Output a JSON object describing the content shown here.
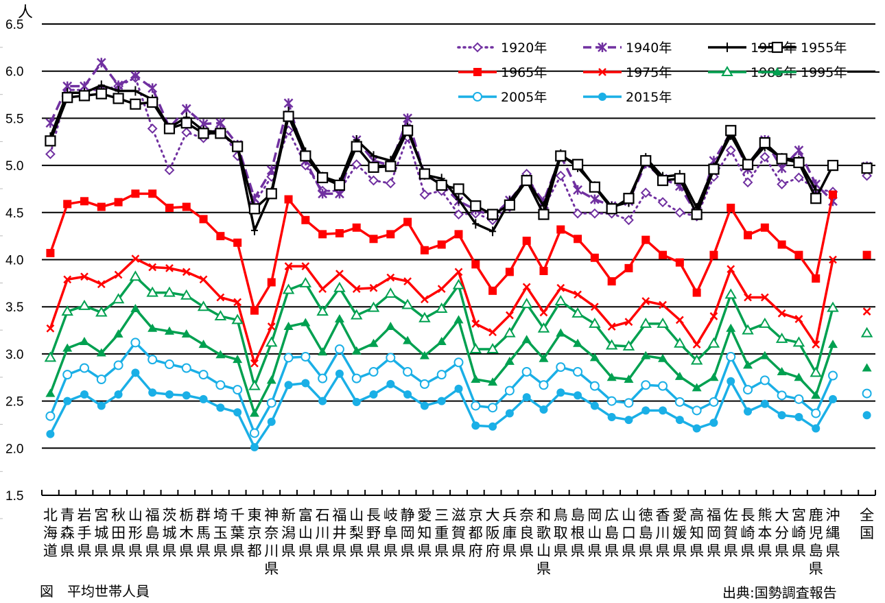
{
  "chart_data": {
    "type": "line",
    "title": "",
    "ylabel": "人",
    "xlabel": "",
    "ylim": [
      1.5,
      6.5
    ],
    "yticks": [
      "1.5",
      "2.0",
      "2.5",
      "3.0",
      "3.5",
      "4.0",
      "4.5",
      "5.0",
      "5.5",
      "6.0",
      "6.5"
    ],
    "ytick_values": [
      1.5,
      2.0,
      2.5,
      3.0,
      3.5,
      4.0,
      4.5,
      5.0,
      5.5,
      6.0,
      6.5
    ],
    "grid": true,
    "legend_position": "top-right",
    "categories": [
      "北海道",
      "青森県",
      "岩手県",
      "宮城県",
      "秋田県",
      "山形県",
      "福島県",
      "茨城県",
      "栃木県",
      "群馬県",
      "埼玉県",
      "千葉県",
      "東京都",
      "神奈川県",
      "新潟県",
      "富山県",
      "石川県",
      "福井県",
      "山梨県",
      "長野県",
      "岐阜県",
      "静岡県",
      "愛知県",
      "三重県",
      "滋賀県",
      "京都府",
      "大阪府",
      "兵庫県",
      "奈良県",
      "和歌山県",
      "鳥取県",
      "島根県",
      "岡山県",
      "広島県",
      "山口県",
      "徳島県",
      "香川県",
      "愛媛県",
      "高知県",
      "福岡県",
      "佐賀県",
      "長崎県",
      "熊本県",
      "大分県",
      "宮崎県",
      "鹿児島県",
      "沖縄県",
      "",
      "全国"
    ],
    "series": [
      {
        "name": "1920年",
        "color": "#7030A0",
        "style": "dotted",
        "marker": "diamond-open",
        "values": [
          5.12,
          5.8,
          5.8,
          5.8,
          5.84,
          5.93,
          5.39,
          4.95,
          5.35,
          5.29,
          5.41,
          5.1,
          4.6,
          4.88,
          5.37,
          5.0,
          4.73,
          4.73,
          5.01,
          4.84,
          4.81,
          5.3,
          4.69,
          4.73,
          4.48,
          4.49,
          4.42,
          4.56,
          4.91,
          4.55,
          4.89,
          4.49,
          4.49,
          4.49,
          4.42,
          4.71,
          4.61,
          4.5,
          4.46,
          4.88,
          5.16,
          4.82,
          5.09,
          4.8,
          4.87,
          4.75,
          4.72,
          null,
          4.89
        ]
      },
      {
        "name": "1940年",
        "color": "#7030A0",
        "style": "dashed",
        "marker": "asterisk",
        "values": [
          5.45,
          5.84,
          5.84,
          6.09,
          5.85,
          5.95,
          5.82,
          5.4,
          5.6,
          5.44,
          5.45,
          5.22,
          4.65,
          4.95,
          5.66,
          5.05,
          4.7,
          4.7,
          5.27,
          5.05,
          5.0,
          5.5,
          4.9,
          4.8,
          4.62,
          4.53,
          4.46,
          4.63,
          4.85,
          4.62,
          5.1,
          4.74,
          4.64,
          4.57,
          4.62,
          5.02,
          4.86,
          4.78,
          4.48,
          5.05,
          5.35,
          4.96,
          5.27,
          4.97,
          5.16,
          4.8,
          4.62,
          null,
          4.99
        ]
      },
      {
        "name": "1950年",
        "color": "#000000",
        "style": "solid",
        "marker": "plus",
        "values": [
          5.3,
          5.77,
          5.77,
          5.85,
          5.79,
          5.79,
          5.7,
          5.4,
          5.51,
          5.37,
          5.35,
          5.2,
          4.31,
          4.72,
          5.57,
          5.14,
          4.88,
          4.82,
          5.27,
          5.1,
          5.05,
          5.4,
          4.9,
          4.86,
          4.64,
          4.38,
          4.3,
          4.62,
          4.85,
          4.57,
          5.12,
          4.98,
          4.78,
          4.56,
          4.61,
          5.08,
          4.88,
          4.9,
          4.55,
          4.98,
          5.32,
          5.0,
          5.2,
          5.08,
          5.05,
          4.74,
          null,
          null,
          4.97
        ]
      },
      {
        "name": "1955年",
        "color": "#000000",
        "style": "solid",
        "marker": "square-open",
        "values": [
          5.26,
          5.72,
          5.74,
          5.76,
          5.71,
          5.65,
          5.67,
          5.39,
          5.45,
          5.34,
          5.34,
          5.2,
          4.54,
          4.7,
          5.52,
          5.1,
          4.87,
          4.79,
          5.2,
          4.98,
          4.99,
          5.37,
          4.91,
          4.79,
          4.75,
          4.57,
          4.48,
          4.58,
          4.84,
          4.48,
          5.1,
          5.01,
          4.77,
          4.54,
          4.65,
          5.05,
          4.84,
          4.86,
          4.48,
          4.96,
          5.37,
          5.01,
          5.24,
          5.07,
          5.03,
          4.65,
          5.0,
          null,
          4.97
        ]
      },
      {
        "name": "1965年",
        "color": "#FF0000",
        "style": "solid",
        "marker": "square-filled",
        "values": [
          4.07,
          4.59,
          4.62,
          4.56,
          4.61,
          4.7,
          4.7,
          4.55,
          4.56,
          4.43,
          4.25,
          4.18,
          3.46,
          3.76,
          4.64,
          4.42,
          4.27,
          4.28,
          4.34,
          4.22,
          4.27,
          4.4,
          4.1,
          4.16,
          4.27,
          3.95,
          3.67,
          3.87,
          4.2,
          3.88,
          4.32,
          4.22,
          4.02,
          3.77,
          3.91,
          4.21,
          4.05,
          3.97,
          3.65,
          4.05,
          4.55,
          4.26,
          4.34,
          4.16,
          4.05,
          3.8,
          4.69,
          null,
          4.05
        ]
      },
      {
        "name": "1975年",
        "color": "#FF0000",
        "style": "solid",
        "marker": "x",
        "values": [
          3.27,
          3.79,
          3.82,
          3.74,
          3.84,
          4.01,
          3.92,
          3.91,
          3.87,
          3.79,
          3.6,
          3.55,
          2.9,
          3.29,
          3.93,
          3.93,
          3.69,
          3.85,
          3.69,
          3.7,
          3.81,
          3.77,
          3.58,
          3.69,
          3.87,
          3.32,
          3.23,
          3.41,
          3.71,
          3.44,
          3.7,
          3.63,
          3.5,
          3.29,
          3.34,
          3.56,
          3.52,
          3.36,
          3.1,
          3.4,
          3.9,
          3.6,
          3.6,
          3.43,
          3.37,
          3.1,
          4.0,
          null,
          3.45
        ]
      },
      {
        "name": "1985年",
        "color": "#00A050",
        "style": "solid",
        "marker": "triangle-open",
        "values": [
          2.96,
          3.45,
          3.51,
          3.44,
          3.58,
          3.82,
          3.65,
          3.65,
          3.62,
          3.5,
          3.4,
          3.36,
          2.66,
          3.12,
          3.68,
          3.75,
          3.45,
          3.7,
          3.41,
          3.49,
          3.64,
          3.52,
          3.38,
          3.48,
          3.73,
          3.05,
          3.05,
          3.22,
          3.53,
          3.27,
          3.56,
          3.43,
          3.32,
          3.09,
          3.08,
          3.32,
          3.32,
          3.11,
          2.93,
          3.11,
          3.63,
          3.25,
          3.32,
          3.16,
          3.12,
          2.8,
          3.49,
          null,
          3.22
        ]
      },
      {
        "name": "1995年",
        "color": "#00A050",
        "style": "solid",
        "marker": "triangle-filled",
        "values": [
          2.58,
          3.06,
          3.13,
          3.01,
          3.21,
          3.48,
          3.27,
          3.24,
          3.21,
          3.1,
          2.99,
          2.94,
          2.37,
          2.72,
          3.29,
          3.33,
          3.02,
          3.37,
          3.03,
          3.11,
          3.29,
          3.14,
          2.98,
          3.13,
          3.36,
          2.73,
          2.7,
          2.92,
          3.15,
          2.95,
          3.22,
          3.11,
          2.96,
          2.75,
          2.73,
          2.98,
          2.95,
          2.76,
          2.64,
          2.75,
          3.27,
          2.88,
          2.98,
          2.81,
          2.75,
          2.56,
          3.1,
          null,
          2.85
        ]
      },
      {
        "name": "2005年",
        "color": "#1AAFE6",
        "style": "solid",
        "marker": "circle-open",
        "values": [
          2.34,
          2.78,
          2.85,
          2.73,
          2.88,
          3.12,
          2.94,
          2.89,
          2.85,
          2.78,
          2.67,
          2.62,
          2.16,
          2.48,
          2.96,
          2.97,
          2.74,
          3.05,
          2.74,
          2.81,
          2.96,
          2.81,
          2.68,
          2.78,
          2.91,
          2.45,
          2.43,
          2.61,
          2.81,
          2.67,
          2.86,
          2.81,
          2.66,
          2.5,
          2.48,
          2.67,
          2.66,
          2.49,
          2.4,
          2.49,
          2.97,
          2.62,
          2.72,
          2.56,
          2.52,
          2.37,
          2.77,
          null,
          2.58
        ]
      },
      {
        "name": "2015年",
        "color": "#1AAFE6",
        "style": "solid",
        "marker": "circle-filled",
        "values": [
          2.15,
          2.5,
          2.57,
          2.45,
          2.57,
          2.8,
          2.59,
          2.57,
          2.56,
          2.52,
          2.43,
          2.38,
          2.01,
          2.28,
          2.67,
          2.69,
          2.5,
          2.79,
          2.49,
          2.57,
          2.68,
          2.57,
          2.45,
          2.5,
          2.63,
          2.24,
          2.23,
          2.37,
          2.54,
          2.41,
          2.59,
          2.56,
          2.45,
          2.33,
          2.3,
          2.4,
          2.4,
          2.3,
          2.21,
          2.27,
          2.71,
          2.39,
          2.47,
          2.35,
          2.33,
          2.21,
          2.52,
          null,
          2.35
        ]
      }
    ]
  },
  "captions": {
    "y_unit": "人",
    "figure": "図　平均世帯人員",
    "source": "出典:国勢調査報告"
  }
}
